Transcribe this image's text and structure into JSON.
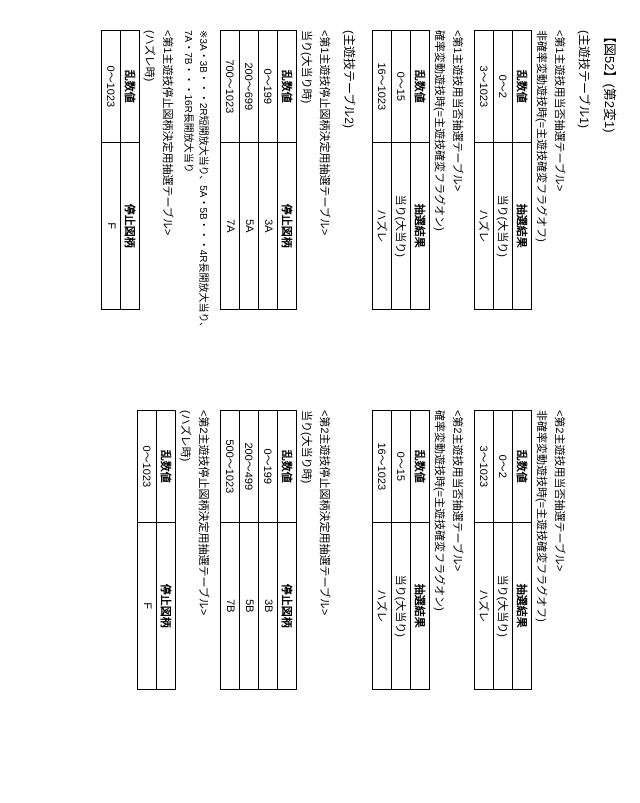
{
  "fig_label": "【図52】(第2変1)",
  "section1_label": "(主遊技テーブル1)",
  "section2_label": "(主遊技テーブル2)",
  "left": {
    "t1": {
      "title": "<第1主遊技用当否抽選テーブル>",
      "sub": "非確率変動遊技時(=主遊技確変フラグオフ)",
      "h1": "乱数値",
      "h2": "抽選結果",
      "r1c1": "0～2",
      "r1c2": "当り(大当り)",
      "r2c1": "3～1023",
      "r2c2": "ハズレ"
    },
    "t2": {
      "title": "<第1主遊技用当否抽選テーブル>",
      "sub": "確率変動遊技時(=主遊技確変フラグオン)",
      "h1": "乱数値",
      "h2": "抽選結果",
      "r1c1": "0～15",
      "r1c2": "当り(大当り)",
      "r2c1": "16～1023",
      "r2c2": "ハズレ"
    },
    "t3": {
      "title": "<第1主遊技停止図柄決定用抽選テーブル>",
      "sub": "当り(大当り時)",
      "h1": "乱数値",
      "h2": "停止図柄",
      "r1c1": "0～199",
      "r1c2": "3A",
      "r2c1": "200～699",
      "r2c2": "5A",
      "r3c1": "700～1023",
      "r3c2": "7A"
    },
    "t3_note": "※3A・3B・・・2R短開放大当り、5A・5B・・・4R長開放大当り、7A・7B・・・16R長開放大当り",
    "t4": {
      "title": "<第1主遊技停止図柄決定用抽選テーブル>",
      "sub": "(ハズレ時)",
      "h1": "乱数値",
      "h2": "停止図柄",
      "r1c1": "0～1023",
      "r1c2": "F"
    }
  },
  "right": {
    "t1": {
      "title": "<第2主遊技用当否抽選テーブル>",
      "sub": "非確率変動遊技時(=主遊技確変フラグオフ)",
      "h1": "乱数値",
      "h2": "抽選結果",
      "r1c1": "0～2",
      "r1c2": "当り(大当り)",
      "r2c1": "3～1023",
      "r2c2": "ハズレ"
    },
    "t2": {
      "title": "<第2主遊技用当否抽選テーブル>",
      "sub": "確率変動遊技時(=主遊技確変フラグオン)",
      "h1": "乱数値",
      "h2": "抽選結果",
      "r1c1": "0～15",
      "r1c2": "当り(大当り)",
      "r2c1": "16～1023",
      "r2c2": "ハズレ"
    },
    "t3": {
      "title": "<第2主遊技停止図柄決定用抽選テーブル>",
      "sub": "当り(大当り時)",
      "h1": "乱数値",
      "h2": "停止図柄",
      "r1c1": "0～199",
      "r1c2": "3B",
      "r2c1": "200～499",
      "r2c2": "5B",
      "r3c1": "500～1023",
      "r3c2": "7B"
    },
    "t4": {
      "title": "<第2主遊技停止図柄決定用抽選テーブル>",
      "sub": "(ハズレ時)",
      "h1": "乱数値",
      "h2": "停止図柄",
      "r1c1": "0～1023",
      "r1c2": "F"
    }
  }
}
